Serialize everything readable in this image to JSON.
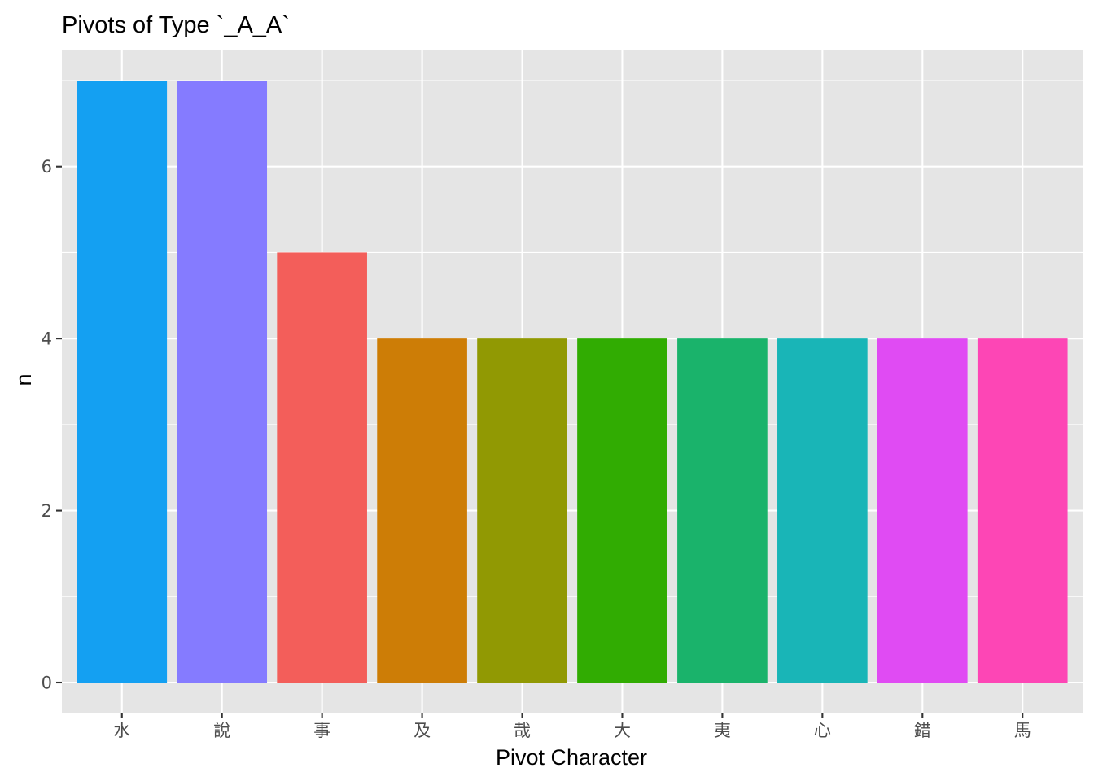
{
  "chart_data": {
    "type": "bar",
    "title": "Pivots of Type `_A_A`",
    "xlabel": "Pivot Character",
    "ylabel": "n",
    "categories": [
      "水",
      "說",
      "事",
      "及",
      "哉",
      "大",
      "夷",
      "心",
      "錯",
      "馬"
    ],
    "values": [
      7,
      7,
      5,
      4,
      4,
      4,
      4,
      4,
      4,
      4
    ],
    "colors": [
      "#14a0f2",
      "#857bff",
      "#f35e5a",
      "#cd7d06",
      "#919903",
      "#31ac02",
      "#1ab36b",
      "#19b5b7",
      "#e04bf3",
      "#fd46b5"
    ],
    "ylim": [
      -0.35,
      7.35
    ],
    "yticks": [
      0,
      2,
      4,
      6
    ],
    "ytick_labels": [
      "0",
      "2",
      "4",
      "6"
    ],
    "grid": true,
    "legend": "none",
    "panel_background": "#e5e5e5",
    "grid_color": "#ffffff"
  }
}
